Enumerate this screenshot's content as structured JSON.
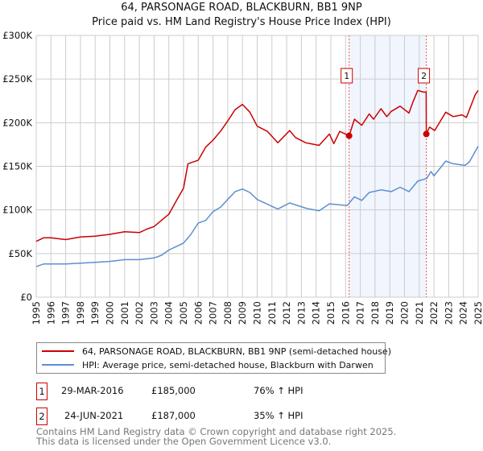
{
  "title": "64, PARSONAGE ROAD, BLACKBURN, BB1 9NP",
  "subtitle": "Price paid vs. HM Land Registry's House Price Index (HPI)",
  "chart_data": {
    "type": "line",
    "xlim": [
      1995,
      2025
    ],
    "ylim": [
      0,
      300000
    ],
    "yticks": [
      {
        "v": 0,
        "label": "£0"
      },
      {
        "v": 50000,
        "label": "£50K"
      },
      {
        "v": 100000,
        "label": "£100K"
      },
      {
        "v": 150000,
        "label": "£150K"
      },
      {
        "v": 200000,
        "label": "£200K"
      },
      {
        "v": 250000,
        "label": "£250K"
      },
      {
        "v": 300000,
        "label": "£300K"
      }
    ],
    "xticks": [
      "1995",
      "1996",
      "1997",
      "1998",
      "1999",
      "2000",
      "2001",
      "2002",
      "2003",
      "2004",
      "2005",
      "2006",
      "2007",
      "2008",
      "2009",
      "2010",
      "2011",
      "2012",
      "2013",
      "2014",
      "2015",
      "2016",
      "2017",
      "2018",
      "2019",
      "2020",
      "2021",
      "2022",
      "2023",
      "2024",
      "2025"
    ],
    "grid": true,
    "series": [
      {
        "name": "64, PARSONAGE ROAD, BLACKBURN, BB1 9NP (semi-detached house)",
        "color": "#cc0000",
        "x": [
          1995,
          1995.5,
          1996,
          1997,
          1998,
          1999,
          2000,
          2001,
          2002,
          2002.5,
          2003,
          2003.5,
          2004,
          2004.5,
          2005,
          2005.3,
          2006,
          2006.5,
          2007,
          2007.5,
          2008,
          2008.5,
          2009,
          2009.5,
          2010,
          2010.7,
          2011.4,
          2012.2,
          2012.6,
          2013.3,
          2014.2,
          2014.9,
          2015.2,
          2015.6,
          2016.24,
          2016.6,
          2017.1,
          2017.6,
          2017.9,
          2018.4,
          2018.8,
          2019.1,
          2019.7,
          2020.3,
          2020.6,
          2020.9,
          2021.3,
          2021.47,
          2021.48,
          2021.7,
          2022.05,
          2022.8,
          2023.3,
          2023.9,
          2024.2,
          2024.8,
          2025
        ],
        "y": [
          64000,
          68000,
          68000,
          66000,
          69000,
          70000,
          72000,
          75000,
          74000,
          78000,
          81000,
          88000,
          95000,
          110000,
          125000,
          153000,
          157000,
          172000,
          180000,
          190000,
          202000,
          215000,
          221000,
          212000,
          196000,
          190000,
          177000,
          191000,
          183000,
          177000,
          174000,
          187000,
          176000,
          190000,
          185000,
          204000,
          197000,
          210000,
          204000,
          216000,
          207000,
          213000,
          219000,
          211000,
          225000,
          237000,
          235000,
          235000,
          187000,
          195000,
          191000,
          212000,
          207000,
          209000,
          206000,
          232000,
          237000
        ]
      },
      {
        "name": "HPI: Average price, semi-detached house, Blackburn with Darwen",
        "color": "#5b8fd0",
        "x": [
          1995,
          1995.5,
          1996,
          1997,
          1998,
          1999,
          2000,
          2001,
          2002,
          2003,
          2003.5,
          2004,
          2004.5,
          2005,
          2005.5,
          2006,
          2006.5,
          2007,
          2007.5,
          2008,
          2008.5,
          2009,
          2009.5,
          2010,
          2011.4,
          2012.2,
          2013.3,
          2014.2,
          2014.9,
          2016.1,
          2016.6,
          2017.1,
          2017.6,
          2018.4,
          2019.1,
          2019.7,
          2020.3,
          2020.9,
          2021.5,
          2021.8,
          2022.0,
          2022.8,
          2023.3,
          2024.1,
          2024.4,
          2025
        ],
        "y": [
          35000,
          38000,
          38000,
          38000,
          39000,
          40000,
          41000,
          43000,
          43000,
          45000,
          48000,
          54000,
          58000,
          62000,
          72000,
          85000,
          88000,
          98000,
          103000,
          112000,
          121000,
          124000,
          120000,
          112000,
          101000,
          108000,
          102000,
          99000,
          107000,
          105000,
          115000,
          111000,
          120000,
          123000,
          121000,
          126000,
          121000,
          133000,
          136000,
          144000,
          139000,
          156000,
          153000,
          151000,
          155000,
          173000
        ]
      }
    ],
    "annotations": [
      {
        "label": "1",
        "x": 2016.24,
        "y": 185000
      },
      {
        "label": "2",
        "x": 2021.48,
        "y": 187000
      }
    ]
  },
  "legend": {
    "red": "64, PARSONAGE ROAD, BLACKBURN, BB1 9NP (semi-detached house)",
    "blue": "HPI: Average price, semi-detached house, Blackburn with Darwen"
  },
  "sales": [
    {
      "n": "1",
      "date": "29-MAR-2016",
      "price": "£185,000",
      "hpi": "76% ↑ HPI"
    },
    {
      "n": "2",
      "date": "24-JUN-2021",
      "price": "£187,000",
      "hpi": "35% ↑ HPI"
    }
  ],
  "footer": {
    "line1": "Contains HM Land Registry data © Crown copyright and database right 2025.",
    "line2": "This data is licensed under the Open Government Licence v3.0."
  }
}
